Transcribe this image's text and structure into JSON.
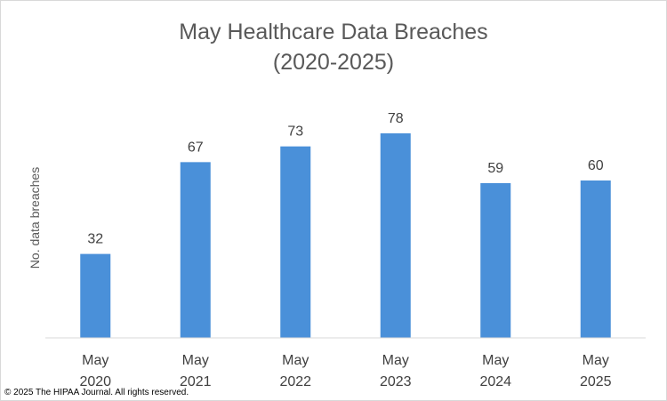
{
  "chart_data": {
    "type": "bar",
    "title_lines": [
      "May Healthcare Data Breaches",
      "(2020-2025)"
    ],
    "xlabel": "",
    "ylabel": "No. data breaches",
    "categories": [
      [
        "May",
        "2020"
      ],
      [
        "May",
        "2021"
      ],
      [
        "May",
        "2022"
      ],
      [
        "May",
        "2023"
      ],
      [
        "May",
        "2024"
      ],
      [
        "May",
        "2025"
      ]
    ],
    "values": [
      32,
      67,
      73,
      78,
      59,
      60
    ],
    "data_labels": [
      "32",
      "67",
      "73",
      "78",
      "59",
      "60"
    ],
    "ylim": [
      0,
      85
    ],
    "grid": false,
    "legend": "none",
    "bar_color": "#4a90d9"
  },
  "footer": {
    "copyright": "© 2025 The HIPAA Journal. All rights reserved."
  }
}
